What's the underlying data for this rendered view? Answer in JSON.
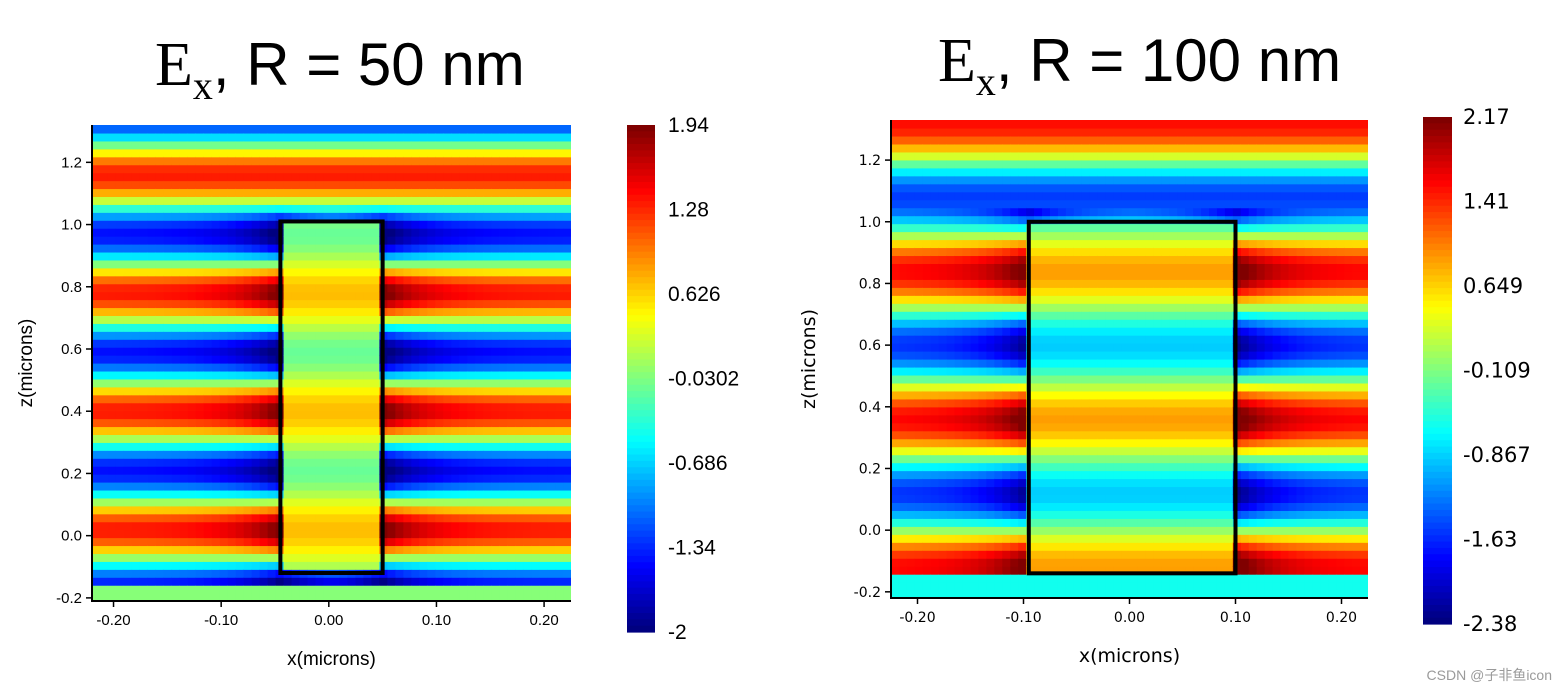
{
  "watermark": "CSDN @子非鱼icon",
  "panels": [
    {
      "title": {
        "base": "E",
        "subscript": "x",
        "rest": ", R = 50 nm"
      },
      "chart_data": {
        "type": "heatmap",
        "xlabel": "x(microns)",
        "ylabel": "z(microns)",
        "xlim": [
          -0.22,
          0.225
        ],
        "ylim": [
          -0.21,
          1.32
        ],
        "xticks": [
          -0.2,
          -0.1,
          0.0,
          0.1,
          0.2
        ],
        "xtick_labels": [
          "-0.20",
          "-0.10",
          "0.00",
          "0.10",
          "0.20"
        ],
        "yticks": [
          -0.2,
          0.0,
          0.2,
          0.4,
          0.6,
          0.8,
          1.0,
          1.2
        ],
        "ytick_labels": [
          "-0.2",
          "0.0",
          "0.2",
          "0.4",
          "0.6",
          "0.8",
          "1.0",
          "1.2"
        ],
        "colorbar": {
          "min": -2,
          "max": 1.94,
          "tick_labels": [
            "1.94",
            "1.28",
            "0.626",
            "-0.0302",
            "-0.686",
            "-1.34",
            "-2"
          ]
        },
        "structure_box": {
          "x": [
            -0.045,
            0.05
          ],
          "z": [
            -0.12,
            1.01
          ]
        },
        "field": {
          "base": -0.05,
          "amp": 1.4,
          "period": 0.38,
          "phase_z": 0.4,
          "substrate_below": -0.15,
          "substrate_value": 0.0,
          "top_end": 1.32,
          "inside_amp": 0.42,
          "inside_base": 0.3,
          "edge_boost": 0.5
        }
      }
    },
    {
      "title": {
        "base": "E",
        "subscript": "x",
        "rest": ", R = 100 nm"
      },
      "chart_data": {
        "type": "heatmap",
        "xlabel": "x(microns)",
        "ylabel": "z(microns)",
        "xlim": [
          -0.225,
          0.225
        ],
        "ylim": [
          -0.22,
          1.33
        ],
        "xticks": [
          -0.2,
          -0.1,
          0.0,
          0.1,
          0.2
        ],
        "xtick_labels": [
          "-0.20",
          "-0.10",
          "0.00",
          "0.10",
          "0.20"
        ],
        "yticks": [
          -0.2,
          0.0,
          0.2,
          0.4,
          0.6,
          0.8,
          1.0,
          1.2
        ],
        "ytick_labels": [
          "-0.2",
          "0.0",
          "0.2",
          "0.4",
          "0.6",
          "0.8",
          "1.0",
          "1.2"
        ],
        "colorbar": {
          "min": -2.38,
          "max": 2.17,
          "tick_labels": [
            "2.17",
            "1.41",
            "0.649",
            "-0.109",
            "-0.867",
            "-1.63",
            "-2.38"
          ]
        },
        "structure_box": {
          "x": [
            -0.095,
            0.1
          ],
          "z": [
            -0.14,
            1.0
          ]
        },
        "field": {
          "base": 0.0,
          "amp": 1.55,
          "period": 0.48,
          "phase_z": 0.36,
          "substrate_below": -0.15,
          "substrate_value": -0.6,
          "top_end": 1.33,
          "inside_amp": 0.9,
          "inside_base": 0.0,
          "edge_boost": 0.55
        }
      }
    }
  ]
}
